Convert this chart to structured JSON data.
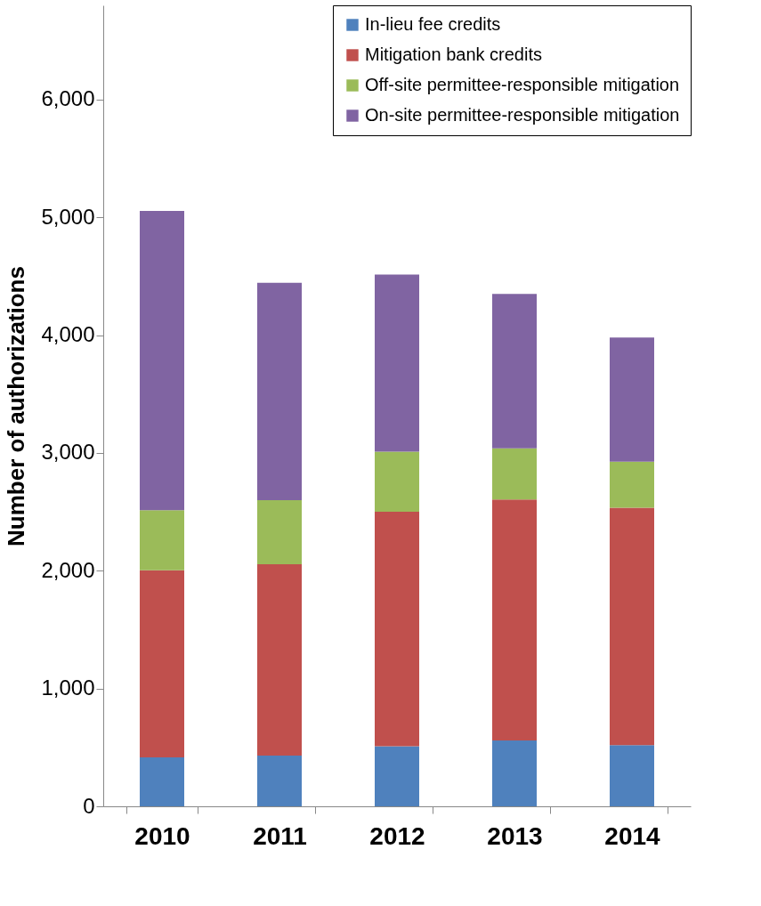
{
  "chart_data": {
    "type": "bar",
    "stacked": true,
    "ylabel": "Number of authorizations",
    "categories": [
      "2010",
      "2011",
      "2012",
      "2013",
      "2014"
    ],
    "series": [
      {
        "name": "In-lieu fee credits",
        "color": "#4f81bd",
        "values": [
          415,
          430,
          510,
          560,
          520
        ]
      },
      {
        "name": "Mitigation bank credits",
        "color": "#c0504d",
        "values": [
          1590,
          1625,
          1990,
          2045,
          2015
        ]
      },
      {
        "name": "Off-site permittee-responsible mitigation",
        "color": "#9bbb59",
        "values": [
          510,
          545,
          510,
          435,
          390
        ]
      },
      {
        "name": "On-site permittee-responsible mitigation",
        "color": "#8064a2",
        "values": [
          2540,
          1845,
          1505,
          1310,
          1055
        ]
      }
    ],
    "ylim": [
      0,
      6800
    ],
    "yticks": [
      {
        "value": 0,
        "label": "0"
      },
      {
        "value": 1000,
        "label": "1,000"
      },
      {
        "value": 2000,
        "label": "2,000"
      },
      {
        "value": 3000,
        "label": "3,000"
      },
      {
        "value": 4000,
        "label": "4,000"
      },
      {
        "value": 5000,
        "label": "5,000"
      },
      {
        "value": 6000,
        "label": "6,000"
      }
    ],
    "grid": false,
    "legend": "top right"
  }
}
